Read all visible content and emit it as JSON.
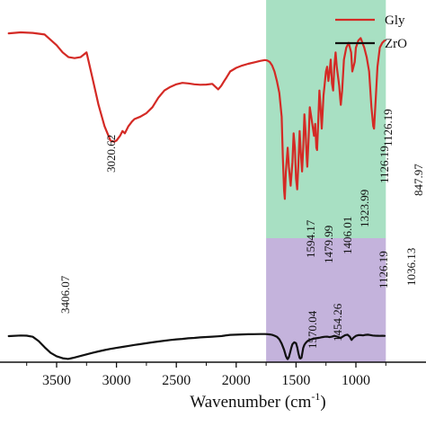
{
  "chart_data": {
    "type": "line",
    "title": "",
    "xlabel": "Wavenumber (cm",
    "xlabel_sup": "-1",
    "xlabel_close": ")",
    "ylabel": "",
    "x_reversed": true,
    "xlim": [
      3900,
      750
    ],
    "x_ticks": [
      3500,
      3000,
      2500,
      2000,
      1500,
      1000
    ],
    "x_tick_labels": [
      "3500",
      "3000",
      "2500",
      "2000",
      "1500",
      "1000"
    ],
    "legend_position": "top-right",
    "grid": false,
    "highlight_regions": [
      {
        "from": 1750,
        "to": 750,
        "color": "#a8e0c3",
        "applies_to": "Gly"
      },
      {
        "from": 1750,
        "to": 750,
        "color": "#c4b3dc",
        "applies_to": "ZrO"
      }
    ],
    "series": [
      {
        "name": "Gly",
        "color": "#d42a25",
        "x": [
          3900,
          3800,
          3700,
          3600,
          3500,
          3450,
          3400,
          3350,
          3300,
          3250,
          3200,
          3150,
          3100,
          3050,
          3020,
          3000,
          2970,
          2950,
          2930,
          2900,
          2870,
          2850,
          2800,
          2750,
          2700,
          2650,
          2600,
          2550,
          2500,
          2450,
          2400,
          2350,
          2300,
          2250,
          2200,
          2150,
          2125,
          2100,
          2080,
          2050,
          2000,
          1950,
          1900,
          1850,
          1800,
          1760,
          1740,
          1720,
          1700,
          1680,
          1660,
          1640,
          1620,
          1610,
          1600,
          1594,
          1585,
          1570,
          1560,
          1545,
          1530,
          1520,
          1510,
          1500,
          1490,
          1480,
          1470,
          1460,
          1450,
          1440,
          1430,
          1420,
          1410,
          1406,
          1395,
          1385,
          1370,
          1350,
          1340,
          1330,
          1324,
          1315,
          1305,
          1295,
          1285,
          1270,
          1250,
          1240,
          1230,
          1220,
          1210,
          1200,
          1190,
          1180,
          1170,
          1160,
          1140,
          1130,
          1126,
          1115,
          1100,
          1080,
          1060,
          1040,
          1030,
          1010,
          1000,
          980,
          960,
          930,
          910,
          890,
          870,
          855,
          848,
          835,
          820,
          800,
          780,
          760
        ],
        "y": [
          86.0,
          86.4,
          86.2,
          85.5,
          81.0,
          78.0,
          76.0,
          75.6,
          76.0,
          78.0,
          67.0,
          56.0,
          47.0,
          41.0,
          40.5,
          41.0,
          43.0,
          45.0,
          44.0,
          47.0,
          49.0,
          50.0,
          51.0,
          52.5,
          55.0,
          59.0,
          62.0,
          63.5,
          64.6,
          65.2,
          65.0,
          64.6,
          64.4,
          64.5,
          64.8,
          62.5,
          64.0,
          66.0,
          67.5,
          70.0,
          71.5,
          72.5,
          73.2,
          73.8,
          74.4,
          74.8,
          74.6,
          74.0,
          72.5,
          70.0,
          66.0,
          61.0,
          51.0,
          34.0,
          20.0,
          16.5,
          28.0,
          38.0,
          30.0,
          22.0,
          32.0,
          44.0,
          38.0,
          25.0,
          20.5,
          32.0,
          45.0,
          36.0,
          28.0,
          38.0,
          52.0,
          44.0,
          33.0,
          30.0,
          42.0,
          55.0,
          50.0,
          43.0,
          48.0,
          38.0,
          37.0,
          48.0,
          62.0,
          55.0,
          46.0,
          60.0,
          70.0,
          72.0,
          66.0,
          70.0,
          75.0,
          65.0,
          62.0,
          72.0,
          78.0,
          72.0,
          64.0,
          58.0,
          56.0,
          62.0,
          75.0,
          80.0,
          82.0,
          78.0,
          70.0,
          74.0,
          80.0,
          83.0,
          84.0,
          80.0,
          76.0,
          70.0,
          55.0,
          47.0,
          46.0,
          58.0,
          72.0,
          80.0,
          82.0,
          83.0
        ]
      },
      {
        "name": "ZrO",
        "color": "#111111",
        "x": [
          3900,
          3800,
          3750,
          3700,
          3650,
          3600,
          3550,
          3500,
          3450,
          3420,
          3406,
          3390,
          3350,
          3300,
          3250,
          3200,
          3150,
          3100,
          3050,
          3000,
          2950,
          2900,
          2850,
          2800,
          2750,
          2700,
          2650,
          2600,
          2550,
          2500,
          2450,
          2400,
          2350,
          2300,
          2250,
          2200,
          2150,
          2120,
          2100,
          2080,
          2050,
          2000,
          1950,
          1900,
          1850,
          1800,
          1760,
          1740,
          1720,
          1700,
          1680,
          1660,
          1640,
          1620,
          1600,
          1585,
          1575,
          1570,
          1560,
          1550,
          1540,
          1530,
          1515,
          1500,
          1490,
          1480,
          1470,
          1465,
          1460,
          1454,
          1448,
          1440,
          1430,
          1420,
          1410,
          1400,
          1390,
          1380,
          1360,
          1340,
          1320,
          1300,
          1280,
          1260,
          1240,
          1220,
          1200,
          1180,
          1160,
          1140,
          1126,
          1110,
          1090,
          1070,
          1050,
          1040,
          1036,
          1020,
          1000,
          980,
          960,
          940,
          920,
          900,
          880,
          860,
          840,
          820,
          800,
          780,
          760
        ],
        "y": [
          21.0,
          21.5,
          21.4,
          20.5,
          17.0,
          12.0,
          7.5,
          4.8,
          3.2,
          2.8,
          2.6,
          2.9,
          3.8,
          5.0,
          6.3,
          7.5,
          8.7,
          9.8,
          10.7,
          11.5,
          12.3,
          13.1,
          13.9,
          14.6,
          15.3,
          16.0,
          16.7,
          17.3,
          17.9,
          18.4,
          18.8,
          19.3,
          19.6,
          20.0,
          20.3,
          20.6,
          20.9,
          21.1,
          21.4,
          21.7,
          22.0,
          22.2,
          22.4,
          22.5,
          22.6,
          22.7,
          22.7,
          22.6,
          22.4,
          22.0,
          21.4,
          20.5,
          18.5,
          15.0,
          10.0,
          5.0,
          3.0,
          2.5,
          4.0,
          7.5,
          11.5,
          14.5,
          16.0,
          15.3,
          12.0,
          7.0,
          3.5,
          3.0,
          3.2,
          3.7,
          7.0,
          11.5,
          14.0,
          15.5,
          16.5,
          17.3,
          17.8,
          18.2,
          18.8,
          19.2,
          19.5,
          19.8,
          20.2,
          20.5,
          20.6,
          20.2,
          20.6,
          21.2,
          20.7,
          20.0,
          19.6,
          20.6,
          21.8,
          22.2,
          20.5,
          18.5,
          18.0,
          19.8,
          21.2,
          21.8,
          21.8,
          21.6,
          22.0,
          22.2,
          21.9,
          21.5,
          21.4,
          21.3,
          21.2,
          21.3,
          21.2
        ]
      }
    ],
    "annotations": [
      {
        "text": "3020.62",
        "series": "Gly"
      },
      {
        "text": "1594.17",
        "series": "Gly"
      },
      {
        "text": "1479.99",
        "series": "Gly"
      },
      {
        "text": "1406.01",
        "series": "Gly"
      },
      {
        "text": "1323.99",
        "series": "Gly"
      },
      {
        "text": "1126.19",
        "series": "Gly"
      },
      {
        "text": "1126.19",
        "series": "Gly"
      },
      {
        "text": "847.97",
        "series": "Gly"
      },
      {
        "text": "3406.07",
        "series": "ZrO"
      },
      {
        "text": "1570.04",
        "series": "ZrO"
      },
      {
        "text": "1454.26",
        "series": "ZrO"
      },
      {
        "text": "1126.19",
        "series": "ZrO"
      },
      {
        "text": "1036.13",
        "series": "ZrO"
      }
    ]
  }
}
